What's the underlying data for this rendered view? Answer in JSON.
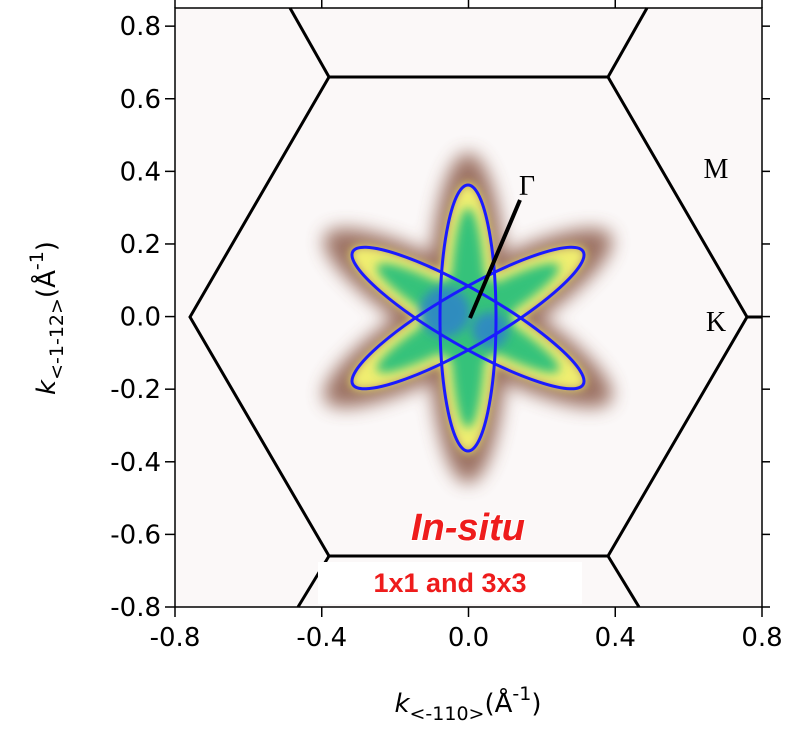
{
  "chart_data": {
    "type": "heatmap",
    "xlim": [
      -0.8,
      0.8
    ],
    "ylim": [
      -0.8,
      0.85
    ],
    "xticks": [
      -0.8,
      -0.4,
      {
        "value": 0,
        "label": "0.0"
      },
      0.4,
      0.8
    ],
    "yticks": [
      0.8,
      0.6,
      0.4,
      0.2,
      {
        "value": 0,
        "label": "0.0"
      },
      -0.2,
      -0.4,
      -0.6,
      -0.8
    ],
    "x_label": {
      "symbol": "k",
      "subscript": "<-110>",
      "unit": "(Å",
      "superscript": "-1",
      "close": ")"
    },
    "y_label": {
      "symbol": "k",
      "subscript": "<-1-12>",
      "unit": "(Å",
      "superscript": "-1",
      "close": ")"
    },
    "annotations": {
      "gamma": "Γ",
      "m": "M",
      "k": "K",
      "method": "In-situ",
      "structures": "1x1 and 3x3"
    },
    "contour_color": "#1a1aff"
  }
}
